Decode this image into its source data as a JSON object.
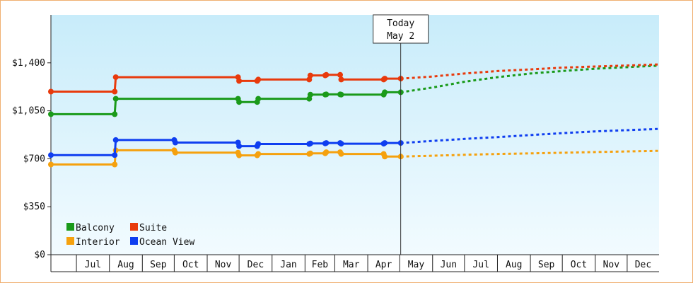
{
  "chart_data": {
    "type": "line",
    "title": "",
    "xlabel": "",
    "ylabel": "",
    "ylim": [
      0,
      1750
    ],
    "y_ticks": [
      0,
      350,
      700,
      1050,
      1400
    ],
    "y_tick_labels": [
      "$0",
      "$350",
      "$700",
      "$1,050",
      "$1,400"
    ],
    "x_range": [
      "2016-06-07",
      "2017-12-31"
    ],
    "x_month_labels": [
      {
        "label": "Jul",
        "start": "2016-07-01",
        "end": "2016-08-01"
      },
      {
        "label": "Aug",
        "start": "2016-08-01",
        "end": "2016-09-01"
      },
      {
        "label": "Sep",
        "start": "2016-09-01",
        "end": "2016-10-01"
      },
      {
        "label": "Oct",
        "start": "2016-10-01",
        "end": "2016-11-01"
      },
      {
        "label": "Nov",
        "start": "2016-11-01",
        "end": "2016-12-01"
      },
      {
        "label": "Dec",
        "start": "2016-12-01",
        "end": "2017-01-01"
      },
      {
        "label": "Jan",
        "start": "2017-01-01",
        "end": "2017-02-01"
      },
      {
        "label": "Feb",
        "start": "2017-02-01",
        "end": "2017-03-01"
      },
      {
        "label": "Mar",
        "start": "2017-03-01",
        "end": "2017-04-01"
      },
      {
        "label": "Apr",
        "start": "2017-04-01",
        "end": "2017-05-01"
      },
      {
        "label": "May",
        "start": "2017-05-01",
        "end": "2017-06-01"
      },
      {
        "label": "Jun",
        "start": "2017-06-01",
        "end": "2017-07-01"
      },
      {
        "label": "Jul",
        "start": "2017-07-01",
        "end": "2017-08-01"
      },
      {
        "label": "Aug",
        "start": "2017-08-01",
        "end": "2017-09-01"
      },
      {
        "label": "Sep",
        "start": "2017-09-01",
        "end": "2017-10-01"
      },
      {
        "label": "Oct",
        "start": "2017-10-01",
        "end": "2017-11-01"
      },
      {
        "label": "Nov",
        "start": "2017-11-01",
        "end": "2017-12-01"
      },
      {
        "label": "Dec",
        "start": "2017-12-01",
        "end": "2017-12-31"
      }
    ],
    "today": {
      "line1": "Today",
      "line2": "May 2",
      "date": "2017-05-02"
    },
    "legend_position": "bottom-left",
    "grid": false,
    "background_gradient": [
      "#c8ecfa",
      "#f2fbff"
    ],
    "series": [
      {
        "name": "Balcony",
        "color": "#1a9a1a",
        "history": [
          [
            "2016-06-07",
            1025
          ],
          [
            "2016-08-06",
            1025
          ],
          [
            "2016-08-07",
            1138
          ],
          [
            "2016-11-30",
            1138
          ],
          [
            "2016-12-01",
            1114
          ],
          [
            "2016-12-18",
            1114
          ],
          [
            "2016-12-19",
            1138
          ],
          [
            "2017-02-05",
            1138
          ],
          [
            "2017-02-06",
            1168
          ],
          [
            "2017-02-20",
            1168
          ],
          [
            "2017-02-21",
            1170
          ],
          [
            "2017-03-06",
            1170
          ],
          [
            "2017-03-07",
            1168
          ],
          [
            "2017-04-16",
            1168
          ],
          [
            "2017-04-17",
            1185
          ],
          [
            "2017-05-02",
            1185
          ]
        ],
        "forecast": [
          [
            "2017-05-02",
            1185
          ],
          [
            "2017-06-01",
            1220
          ],
          [
            "2017-07-01",
            1262
          ],
          [
            "2017-08-01",
            1295
          ],
          [
            "2017-09-01",
            1322
          ],
          [
            "2017-10-01",
            1340
          ],
          [
            "2017-11-01",
            1357
          ],
          [
            "2017-12-31",
            1380
          ]
        ]
      },
      {
        "name": "Suite",
        "color": "#e83a0c",
        "history": [
          [
            "2016-06-07",
            1190
          ],
          [
            "2016-08-06",
            1190
          ],
          [
            "2016-08-07",
            1295
          ],
          [
            "2016-11-30",
            1295
          ],
          [
            "2016-12-01",
            1268
          ],
          [
            "2016-12-18",
            1268
          ],
          [
            "2016-12-19",
            1278
          ],
          [
            "2017-02-05",
            1278
          ],
          [
            "2017-02-06",
            1308
          ],
          [
            "2017-02-20",
            1308
          ],
          [
            "2017-02-21",
            1312
          ],
          [
            "2017-03-06",
            1312
          ],
          [
            "2017-03-07",
            1278
          ],
          [
            "2017-04-16",
            1278
          ],
          [
            "2017-04-17",
            1285
          ],
          [
            "2017-05-02",
            1285
          ]
        ],
        "forecast": [
          [
            "2017-05-02",
            1285
          ],
          [
            "2017-06-01",
            1300
          ],
          [
            "2017-07-01",
            1322
          ],
          [
            "2017-08-01",
            1340
          ],
          [
            "2017-09-01",
            1352
          ],
          [
            "2017-10-01",
            1365
          ],
          [
            "2017-11-01",
            1373
          ],
          [
            "2017-12-31",
            1388
          ]
        ]
      },
      {
        "name": "Interior",
        "color": "#f5a10e",
        "history": [
          [
            "2016-06-07",
            658
          ],
          [
            "2016-08-06",
            658
          ],
          [
            "2016-08-07",
            762
          ],
          [
            "2016-10-01",
            762
          ],
          [
            "2016-10-02",
            745
          ],
          [
            "2016-11-30",
            745
          ],
          [
            "2016-12-01",
            725
          ],
          [
            "2016-12-18",
            725
          ],
          [
            "2016-12-19",
            735
          ],
          [
            "2017-02-05",
            735
          ],
          [
            "2017-02-06",
            740
          ],
          [
            "2017-02-20",
            740
          ],
          [
            "2017-02-21",
            748
          ],
          [
            "2017-03-06",
            748
          ],
          [
            "2017-03-07",
            735
          ],
          [
            "2017-04-16",
            735
          ],
          [
            "2017-04-17",
            716
          ],
          [
            "2017-05-02",
            716
          ]
        ],
        "forecast": [
          [
            "2017-05-02",
            716
          ],
          [
            "2017-06-01",
            722
          ],
          [
            "2017-07-01",
            729
          ],
          [
            "2017-08-01",
            735
          ],
          [
            "2017-09-01",
            739
          ],
          [
            "2017-10-01",
            744
          ],
          [
            "2017-11-01",
            749
          ],
          [
            "2017-12-31",
            758
          ]
        ]
      },
      {
        "name": "Ocean View",
        "color": "#0f3ef0",
        "history": [
          [
            "2016-06-07",
            727
          ],
          [
            "2016-08-06",
            727
          ],
          [
            "2016-08-07",
            837
          ],
          [
            "2016-10-01",
            837
          ],
          [
            "2016-10-02",
            818
          ],
          [
            "2016-11-30",
            818
          ],
          [
            "2016-12-01",
            792
          ],
          [
            "2016-12-18",
            792
          ],
          [
            "2016-12-19",
            808
          ],
          [
            "2017-02-05",
            808
          ],
          [
            "2017-02-06",
            812
          ],
          [
            "2017-02-20",
            812
          ],
          [
            "2017-02-21",
            815
          ],
          [
            "2017-03-06",
            815
          ],
          [
            "2017-03-07",
            810
          ],
          [
            "2017-04-16",
            810
          ],
          [
            "2017-04-17",
            815
          ],
          [
            "2017-05-02",
            815
          ]
        ],
        "forecast": [
          [
            "2017-05-02",
            815
          ],
          [
            "2017-06-01",
            830
          ],
          [
            "2017-07-01",
            845
          ],
          [
            "2017-08-01",
            858
          ],
          [
            "2017-09-01",
            873
          ],
          [
            "2017-10-01",
            887
          ],
          [
            "2017-11-01",
            900
          ],
          [
            "2017-12-31",
            918
          ]
        ]
      }
    ]
  },
  "legend": {
    "items": [
      {
        "name": "Balcony",
        "color": "#1a9a1a"
      },
      {
        "name": "Suite",
        "color": "#e83a0c"
      },
      {
        "name": "Interior",
        "color": "#f5a10e"
      },
      {
        "name": "Ocean View",
        "color": "#0f3ef0"
      }
    ]
  }
}
